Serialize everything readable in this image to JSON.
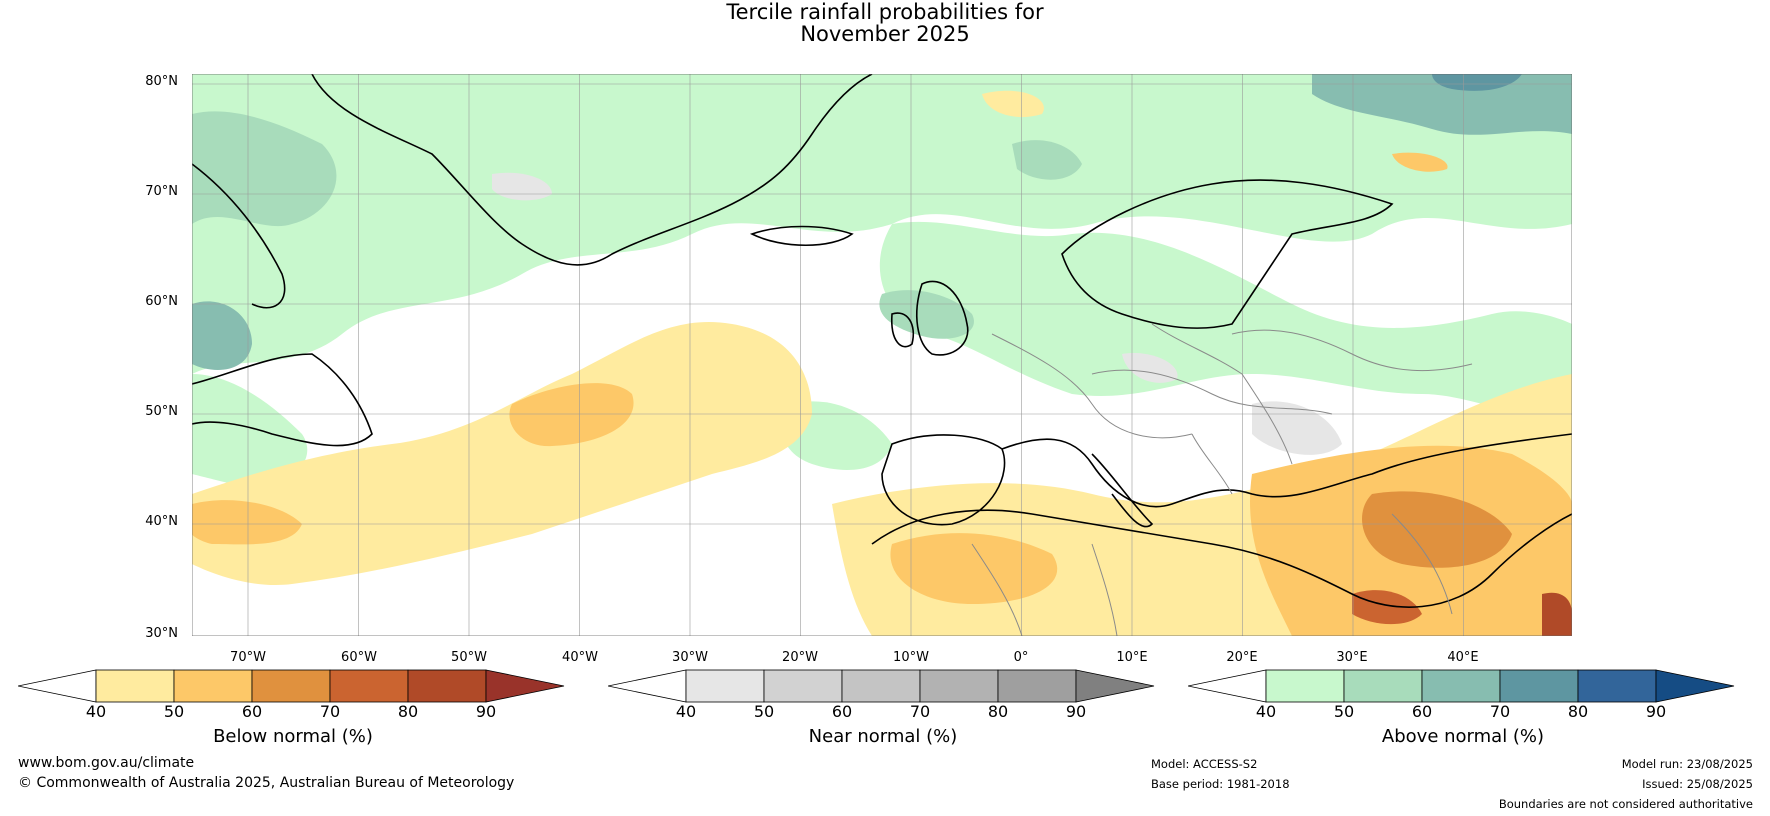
{
  "title": {
    "line1": "Tercile rainfall probabilities for",
    "line2": "November 2025"
  },
  "map": {
    "lat_labels": [
      "80°N",
      "70°N",
      "60°N",
      "50°N",
      "40°N",
      "30°N"
    ],
    "lon_labels": [
      "70°W",
      "60°W",
      "50°W",
      "40°W",
      "30°W",
      "20°W",
      "10°W",
      "0°",
      "10°E",
      "20°E",
      "30°E",
      "40°E"
    ],
    "colors": {
      "below": [
        "#ffeb9f",
        "#fdc868",
        "#e0913e",
        "#cb6430",
        "#b04a28",
        "#99332a"
      ],
      "near": [
        "#e6e6e6",
        "#d2d2d2",
        "#c4c4c4",
        "#b2b2b2",
        "#9f9f9f",
        "#808080"
      ],
      "above": [
        "#c8f8cd",
        "#a8dcbb",
        "#87bdb0",
        "#5e96a1",
        "#32659a",
        "#154c84"
      ]
    }
  },
  "colorbars": [
    {
      "id": "below",
      "ticks": [
        "40",
        "50",
        "60",
        "70",
        "80",
        "90"
      ],
      "label": "Below normal (%)"
    },
    {
      "id": "near",
      "ticks": [
        "40",
        "50",
        "60",
        "70",
        "80",
        "90"
      ],
      "label": "Near normal (%)"
    },
    {
      "id": "above",
      "ticks": [
        "40",
        "50",
        "60",
        "70",
        "80",
        "90"
      ],
      "label": "Above normal (%)"
    }
  ],
  "footer": {
    "website": "www.bom.gov.au/climate",
    "copyright": "© Commonwealth of Australia 2025, Australian Bureau of Meteorology",
    "model": "Model: ACCESS-S2",
    "base_period": "Base period: 1981-2018",
    "model_run": "Model run: 23/08/2025",
    "issued": "Issued: 25/08/2025",
    "disclaimer": "Boundaries are not considered authoritative"
  }
}
